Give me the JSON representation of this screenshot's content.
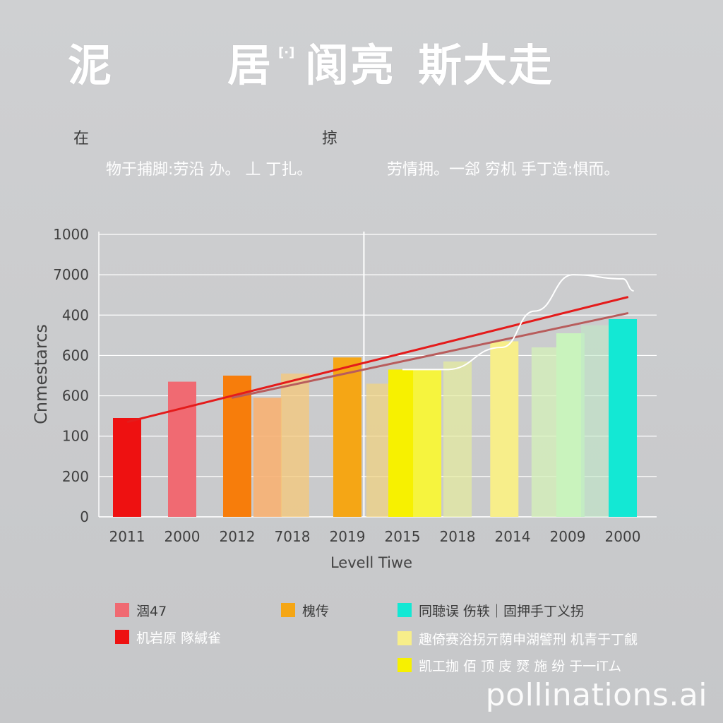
{
  "title": {
    "part1": "泥",
    "part2": "居",
    "part2_mark": "[·]",
    "part3": "阆亮",
    "part4": "斯大走"
  },
  "headers": {
    "left": "在",
    "right": "掠"
  },
  "descriptions": {
    "left": "物于捕脚:劳沿 办。 丄 丁扎。",
    "right": "劳情拥。一郐 穷机 手丁造:惧而。"
  },
  "chart_data": {
    "type": "bar",
    "title": "",
    "xlabel": "Levell Tiwe",
    "ylabel": "Cnmestarcs",
    "categories": [
      "2011",
      "2000",
      "2012",
      "7018",
      "2019",
      "2015",
      "2018",
      "2014",
      "2009",
      "2000"
    ],
    "y_tick_labels": [
      "0",
      "200",
      "100",
      "600",
      "600",
      "400",
      "7000",
      "1000"
    ],
    "y_tick_positions": [
      0,
      1,
      2,
      3,
      4,
      5,
      6,
      7
    ],
    "ylim": [
      0,
      7
    ],
    "bars": [
      {
        "value": 2.45,
        "color": "#ee1111",
        "opacity": 1
      },
      {
        "value": 3.35,
        "color": "#f06a72",
        "opacity": 1
      },
      {
        "value": 3.5,
        "color": "#f77d0b",
        "opacity": 1
      },
      {
        "value": 2.95,
        "color": "#f7b173",
        "opacity": 0.9
      },
      {
        "value": 3.55,
        "color": "#f6c879",
        "opacity": 0.75
      },
      {
        "value": 3.95,
        "color": "#f5a615",
        "opacity": 1
      },
      {
        "value": 3.3,
        "color": "#f2d37e",
        "opacity": 0.7
      },
      {
        "value": 3.65,
        "color": "#f7f100",
        "opacity": 1
      },
      {
        "value": 3.65,
        "color": "#f6f43e",
        "opacity": 1
      },
      {
        "value": 3.85,
        "color": "#e5ec9d",
        "opacity": 0.7
      },
      {
        "value": 4.35,
        "color": "#f7ee8a",
        "opacity": 1
      },
      {
        "value": 4.2,
        "color": "#d4f2b8",
        "opacity": 0.75
      },
      {
        "value": 4.55,
        "color": "#c9f3bd",
        "opacity": 1
      },
      {
        "value": 4.75,
        "color": "#bfe8c6",
        "opacity": 0.6
      },
      {
        "value": 4.9,
        "color": "#13e8d4",
        "opacity": 1
      }
    ],
    "bar_positions": [
      0,
      1,
      2,
      2.55,
      3.05,
      4,
      4.6,
      5,
      5.45,
      6,
      6.85,
      7.6,
      8.05,
      8.5,
      9
    ],
    "trend_lines": [
      {
        "color": "#e41b1b",
        "points": [
          [
            0,
            2.35
          ],
          [
            9.1,
            5.45
          ]
        ]
      },
      {
        "color": "#b85c5c",
        "points": [
          [
            1.9,
            2.95
          ],
          [
            9.1,
            5.05
          ]
        ]
      }
    ],
    "curve": {
      "color": "#ffffff",
      "points": [
        [
          5.0,
          3.65
        ],
        [
          5.8,
          3.65
        ],
        [
          6.8,
          4.2
        ],
        [
          7.4,
          5.1
        ],
        [
          8.1,
          6.0
        ],
        [
          9.0,
          5.9
        ],
        [
          9.2,
          5.6
        ]
      ]
    },
    "vertical_marker": 4.3,
    "grid": true,
    "legend_position": "bottom"
  },
  "legend": [
    {
      "label": "涸47",
      "color": "#f06a72",
      "light": false
    },
    {
      "label": "机岩原 隊緘雀",
      "color": "#ee1111",
      "light": true
    },
    {
      "label": "槐传",
      "color": "#f5a615",
      "light": false
    },
    {
      "label": "同聴误  伤轶｜固押手丁义拐",
      "color": "#13e8d4",
      "light": false
    },
    {
      "label": "趣倚赛浴拐亓荫申湖譬刑 机青于丁觎",
      "color": "#f7ee8a",
      "light": true
    },
    {
      "label": "凯工拁  佰 顶 庋 燹 施 纷 于一iTム",
      "color": "#f7f100",
      "light": true
    }
  ],
  "watermark": "pollinations.ai"
}
